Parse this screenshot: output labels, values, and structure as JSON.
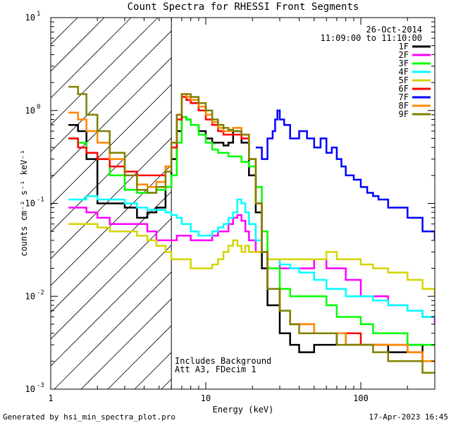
{
  "chart_data": {
    "type": "line",
    "title": "Count Spectra for RHESSI Front Segments",
    "xlabel": "Energy (keV)",
    "ylabel": "counts cm⁻² s⁻¹ keV⁻¹",
    "xscale": "log",
    "yscale": "log",
    "xlim": [
      1,
      300
    ],
    "ylim": [
      0.001,
      10
    ],
    "x_ticks": [
      {
        "value": 1,
        "label": "1"
      },
      {
        "value": 10,
        "label": "10"
      },
      {
        "value": 100,
        "label": "100"
      }
    ],
    "y_ticks": [
      {
        "value": 0.001,
        "base": "10",
        "exp": "-3"
      },
      {
        "value": 0.01,
        "base": "10",
        "exp": "-2"
      },
      {
        "value": 0.1,
        "base": "10",
        "exp": "-1"
      },
      {
        "value": 1,
        "base": "10",
        "exp": "0"
      },
      {
        "value": 10,
        "base": "10",
        "exp": "1"
      }
    ],
    "hatch_region_upper_kev": 6,
    "legend": {
      "date": "26-Oct-2014",
      "time_range": "11:09:00 to 11:10:00",
      "placement": "top-right"
    },
    "annotations": [
      "Includes Background",
      "Att A3, FDecim 1"
    ],
    "series": [
      {
        "name": "1F",
        "color": "#000000",
        "x": [
          1.3,
          1.5,
          1.7,
          2,
          2.4,
          3,
          3.6,
          4.2,
          4.8,
          5.5,
          6,
          6.5,
          7,
          7.5,
          8,
          9,
          10,
          11,
          12,
          13,
          14,
          15,
          17,
          19,
          21,
          23,
          25,
          30,
          35,
          40,
          50,
          60,
          70,
          80,
          100,
          120,
          150,
          200,
          250,
          300
        ],
        "y": [
          0.7,
          0.6,
          0.3,
          0.1,
          0.1,
          0.09,
          0.07,
          0.08,
          0.09,
          0.15,
          0.3,
          0.6,
          0.85,
          0.8,
          0.7,
          0.6,
          0.5,
          0.45,
          0.45,
          0.42,
          0.45,
          0.6,
          0.45,
          0.2,
          0.08,
          0.02,
          0.008,
          0.004,
          0.003,
          0.0025,
          0.003,
          0.003,
          0.004,
          0.003,
          0.003,
          0.003,
          0.0025,
          0.003,
          0.002,
          0.002
        ]
      },
      {
        "name": "2F",
        "color": "#ff00ff",
        "x": [
          1.3,
          1.5,
          1.7,
          2,
          2.4,
          3,
          3.6,
          4.2,
          4.8,
          5.5,
          6,
          6.5,
          7,
          8,
          9,
          10,
          11,
          12,
          13,
          14,
          15,
          16,
          17,
          18,
          19,
          21,
          23,
          25,
          30,
          35,
          40,
          50,
          60,
          70,
          80,
          100,
          120,
          150,
          200,
          250,
          300
        ],
        "y": [
          0.09,
          0.09,
          0.08,
          0.07,
          0.06,
          0.06,
          0.06,
          0.05,
          0.04,
          0.04,
          0.04,
          0.045,
          0.045,
          0.04,
          0.04,
          0.04,
          0.045,
          0.05,
          0.05,
          0.06,
          0.07,
          0.075,
          0.065,
          0.05,
          0.04,
          0.03,
          0.03,
          0.025,
          0.02,
          0.02,
          0.02,
          0.025,
          0.02,
          0.02,
          0.015,
          0.01,
          0.01,
          0.008,
          0.007,
          0.006,
          0.005
        ]
      },
      {
        "name": "3F",
        "color": "#00ff00",
        "x": [
          1.3,
          1.5,
          1.7,
          2,
          2.4,
          3,
          3.6,
          4.2,
          4.8,
          5.5,
          6,
          6.5,
          7,
          7.5,
          8,
          9,
          10,
          11,
          12,
          13,
          14,
          15,
          17,
          19,
          21,
          23,
          25,
          30,
          35,
          40,
          50,
          60,
          70,
          80,
          100,
          120,
          150,
          200,
          250,
          300
        ],
        "y": [
          0.5,
          0.45,
          0.35,
          0.3,
          0.2,
          0.14,
          0.13,
          0.13,
          0.14,
          0.15,
          0.2,
          0.45,
          0.85,
          0.8,
          0.7,
          0.55,
          0.45,
          0.38,
          0.35,
          0.35,
          0.32,
          0.32,
          0.28,
          0.25,
          0.15,
          0.05,
          0.02,
          0.012,
          0.01,
          0.01,
          0.01,
          0.008,
          0.006,
          0.006,
          0.005,
          0.004,
          0.004,
          0.003,
          0.003,
          0.003
        ]
      },
      {
        "name": "4F",
        "color": "#00ffff",
        "x": [
          1.3,
          1.5,
          1.7,
          2,
          2.4,
          3,
          3.6,
          4.2,
          4.8,
          5.5,
          6,
          6.5,
          7,
          8,
          9,
          10,
          11,
          12,
          13,
          14,
          15,
          16,
          17,
          18,
          19,
          21,
          23,
          25,
          30,
          35,
          40,
          50,
          60,
          70,
          80,
          100,
          120,
          150,
          200,
          250,
          300
        ],
        "y": [
          0.11,
          0.11,
          0.12,
          0.11,
          0.11,
          0.1,
          0.09,
          0.085,
          0.085,
          0.08,
          0.075,
          0.07,
          0.06,
          0.05,
          0.045,
          0.045,
          0.05,
          0.055,
          0.06,
          0.07,
          0.08,
          0.11,
          0.1,
          0.08,
          0.06,
          0.04,
          0.03,
          0.025,
          0.022,
          0.02,
          0.018,
          0.015,
          0.012,
          0.012,
          0.01,
          0.01,
          0.009,
          0.008,
          0.007,
          0.006,
          0.006
        ]
      },
      {
        "name": "5F",
        "color": "#d4d400",
        "x": [
          1.3,
          1.5,
          1.7,
          2,
          2.4,
          3,
          3.6,
          4.2,
          4.8,
          5.5,
          6,
          6.5,
          7,
          8,
          9,
          10,
          11,
          12,
          13,
          14,
          15,
          16,
          17,
          18,
          19,
          21,
          23,
          25,
          30,
          35,
          40,
          50,
          60,
          70,
          80,
          100,
          120,
          150,
          200,
          250,
          300
        ],
        "y": [
          0.06,
          0.06,
          0.06,
          0.055,
          0.05,
          0.05,
          0.045,
          0.04,
          0.035,
          0.03,
          0.025,
          0.025,
          0.025,
          0.02,
          0.02,
          0.02,
          0.022,
          0.025,
          0.03,
          0.035,
          0.04,
          0.035,
          0.03,
          0.035,
          0.03,
          0.03,
          0.03,
          0.025,
          0.025,
          0.025,
          0.025,
          0.025,
          0.03,
          0.025,
          0.025,
          0.022,
          0.02,
          0.018,
          0.015,
          0.012,
          0.01
        ]
      },
      {
        "name": "6F",
        "color": "#ff0000",
        "x": [
          1.3,
          1.5,
          1.7,
          2,
          2.4,
          3,
          3.6,
          4.2,
          4.8,
          5.5,
          6,
          6.5,
          7,
          7.5,
          8,
          9,
          10,
          11,
          12,
          13,
          14,
          15,
          17,
          19,
          21,
          23,
          25,
          30,
          35,
          40,
          50,
          60,
          70,
          80,
          100,
          120,
          150,
          200,
          250,
          300
        ],
        "y": [
          0.5,
          0.4,
          0.35,
          0.3,
          0.25,
          0.22,
          0.2,
          0.2,
          0.2,
          0.25,
          0.4,
          0.8,
          1.4,
          1.3,
          1.2,
          1.0,
          0.8,
          0.7,
          0.6,
          0.55,
          0.55,
          0.55,
          0.5,
          0.3,
          0.1,
          0.03,
          0.012,
          0.007,
          0.005,
          0.005,
          0.004,
          0.004,
          0.004,
          0.004,
          0.003,
          0.003,
          0.003,
          0.0025,
          0.002,
          0.002
        ]
      },
      {
        "name": "7F",
        "color": "#0000ff",
        "x": [
          21,
          23,
          25,
          27,
          28,
          29,
          30,
          32,
          35,
          40,
          45,
          50,
          55,
          60,
          65,
          70,
          75,
          80,
          90,
          100,
          110,
          120,
          130,
          150,
          200,
          250,
          300
        ],
        "y": [
          0.4,
          0.3,
          0.5,
          0.6,
          0.8,
          1.0,
          0.8,
          0.7,
          0.5,
          0.6,
          0.5,
          0.4,
          0.5,
          0.35,
          0.4,
          0.3,
          0.25,
          0.2,
          0.18,
          0.15,
          0.13,
          0.12,
          0.11,
          0.09,
          0.07,
          0.05,
          0.04
        ]
      },
      {
        "name": "8F",
        "color": "#ff8800",
        "x": [
          1.3,
          1.5,
          1.7,
          2,
          2.4,
          3,
          3.6,
          4.2,
          4.8,
          5.5,
          6,
          6.5,
          7,
          7.5,
          8,
          9,
          10,
          11,
          12,
          13,
          14,
          15,
          17,
          19,
          21,
          23,
          25,
          30,
          35,
          40,
          50,
          60,
          70,
          80,
          100,
          120,
          150,
          200,
          250,
          300
        ],
        "y": [
          0.95,
          0.8,
          0.6,
          0.45,
          0.3,
          0.2,
          0.16,
          0.15,
          0.17,
          0.25,
          0.45,
          0.9,
          1.5,
          1.4,
          1.3,
          1.1,
          0.9,
          0.75,
          0.65,
          0.6,
          0.6,
          0.65,
          0.55,
          0.3,
          0.1,
          0.03,
          0.012,
          0.007,
          0.005,
          0.005,
          0.004,
          0.004,
          0.004,
          0.003,
          0.003,
          0.003,
          0.003,
          0.0025,
          0.002,
          0.002
        ]
      },
      {
        "name": "9F",
        "color": "#808000",
        "x": [
          1.3,
          1.5,
          1.7,
          2,
          2.4,
          3,
          3.6,
          4.2,
          4.8,
          5.5,
          6,
          6.5,
          7,
          7.5,
          8,
          9,
          10,
          11,
          12,
          13,
          14,
          15,
          17,
          19,
          21,
          23,
          25,
          30,
          35,
          40,
          50,
          60,
          70,
          80,
          100,
          120,
          150,
          200,
          250,
          300
        ],
        "y": [
          1.8,
          1.5,
          0.9,
          0.6,
          0.35,
          0.2,
          0.14,
          0.13,
          0.15,
          0.22,
          0.45,
          0.9,
          1.5,
          1.5,
          1.4,
          1.2,
          1.0,
          0.8,
          0.7,
          0.65,
          0.62,
          0.6,
          0.55,
          0.3,
          0.1,
          0.03,
          0.012,
          0.007,
          0.005,
          0.004,
          0.004,
          0.004,
          0.003,
          0.003,
          0.003,
          0.0025,
          0.002,
          0.002,
          0.0015,
          0.0015
        ]
      }
    ]
  },
  "footer": {
    "left": "Generated by hsi_min_spectra_plot.pro",
    "right": "17-Apr-2023 16:45"
  }
}
